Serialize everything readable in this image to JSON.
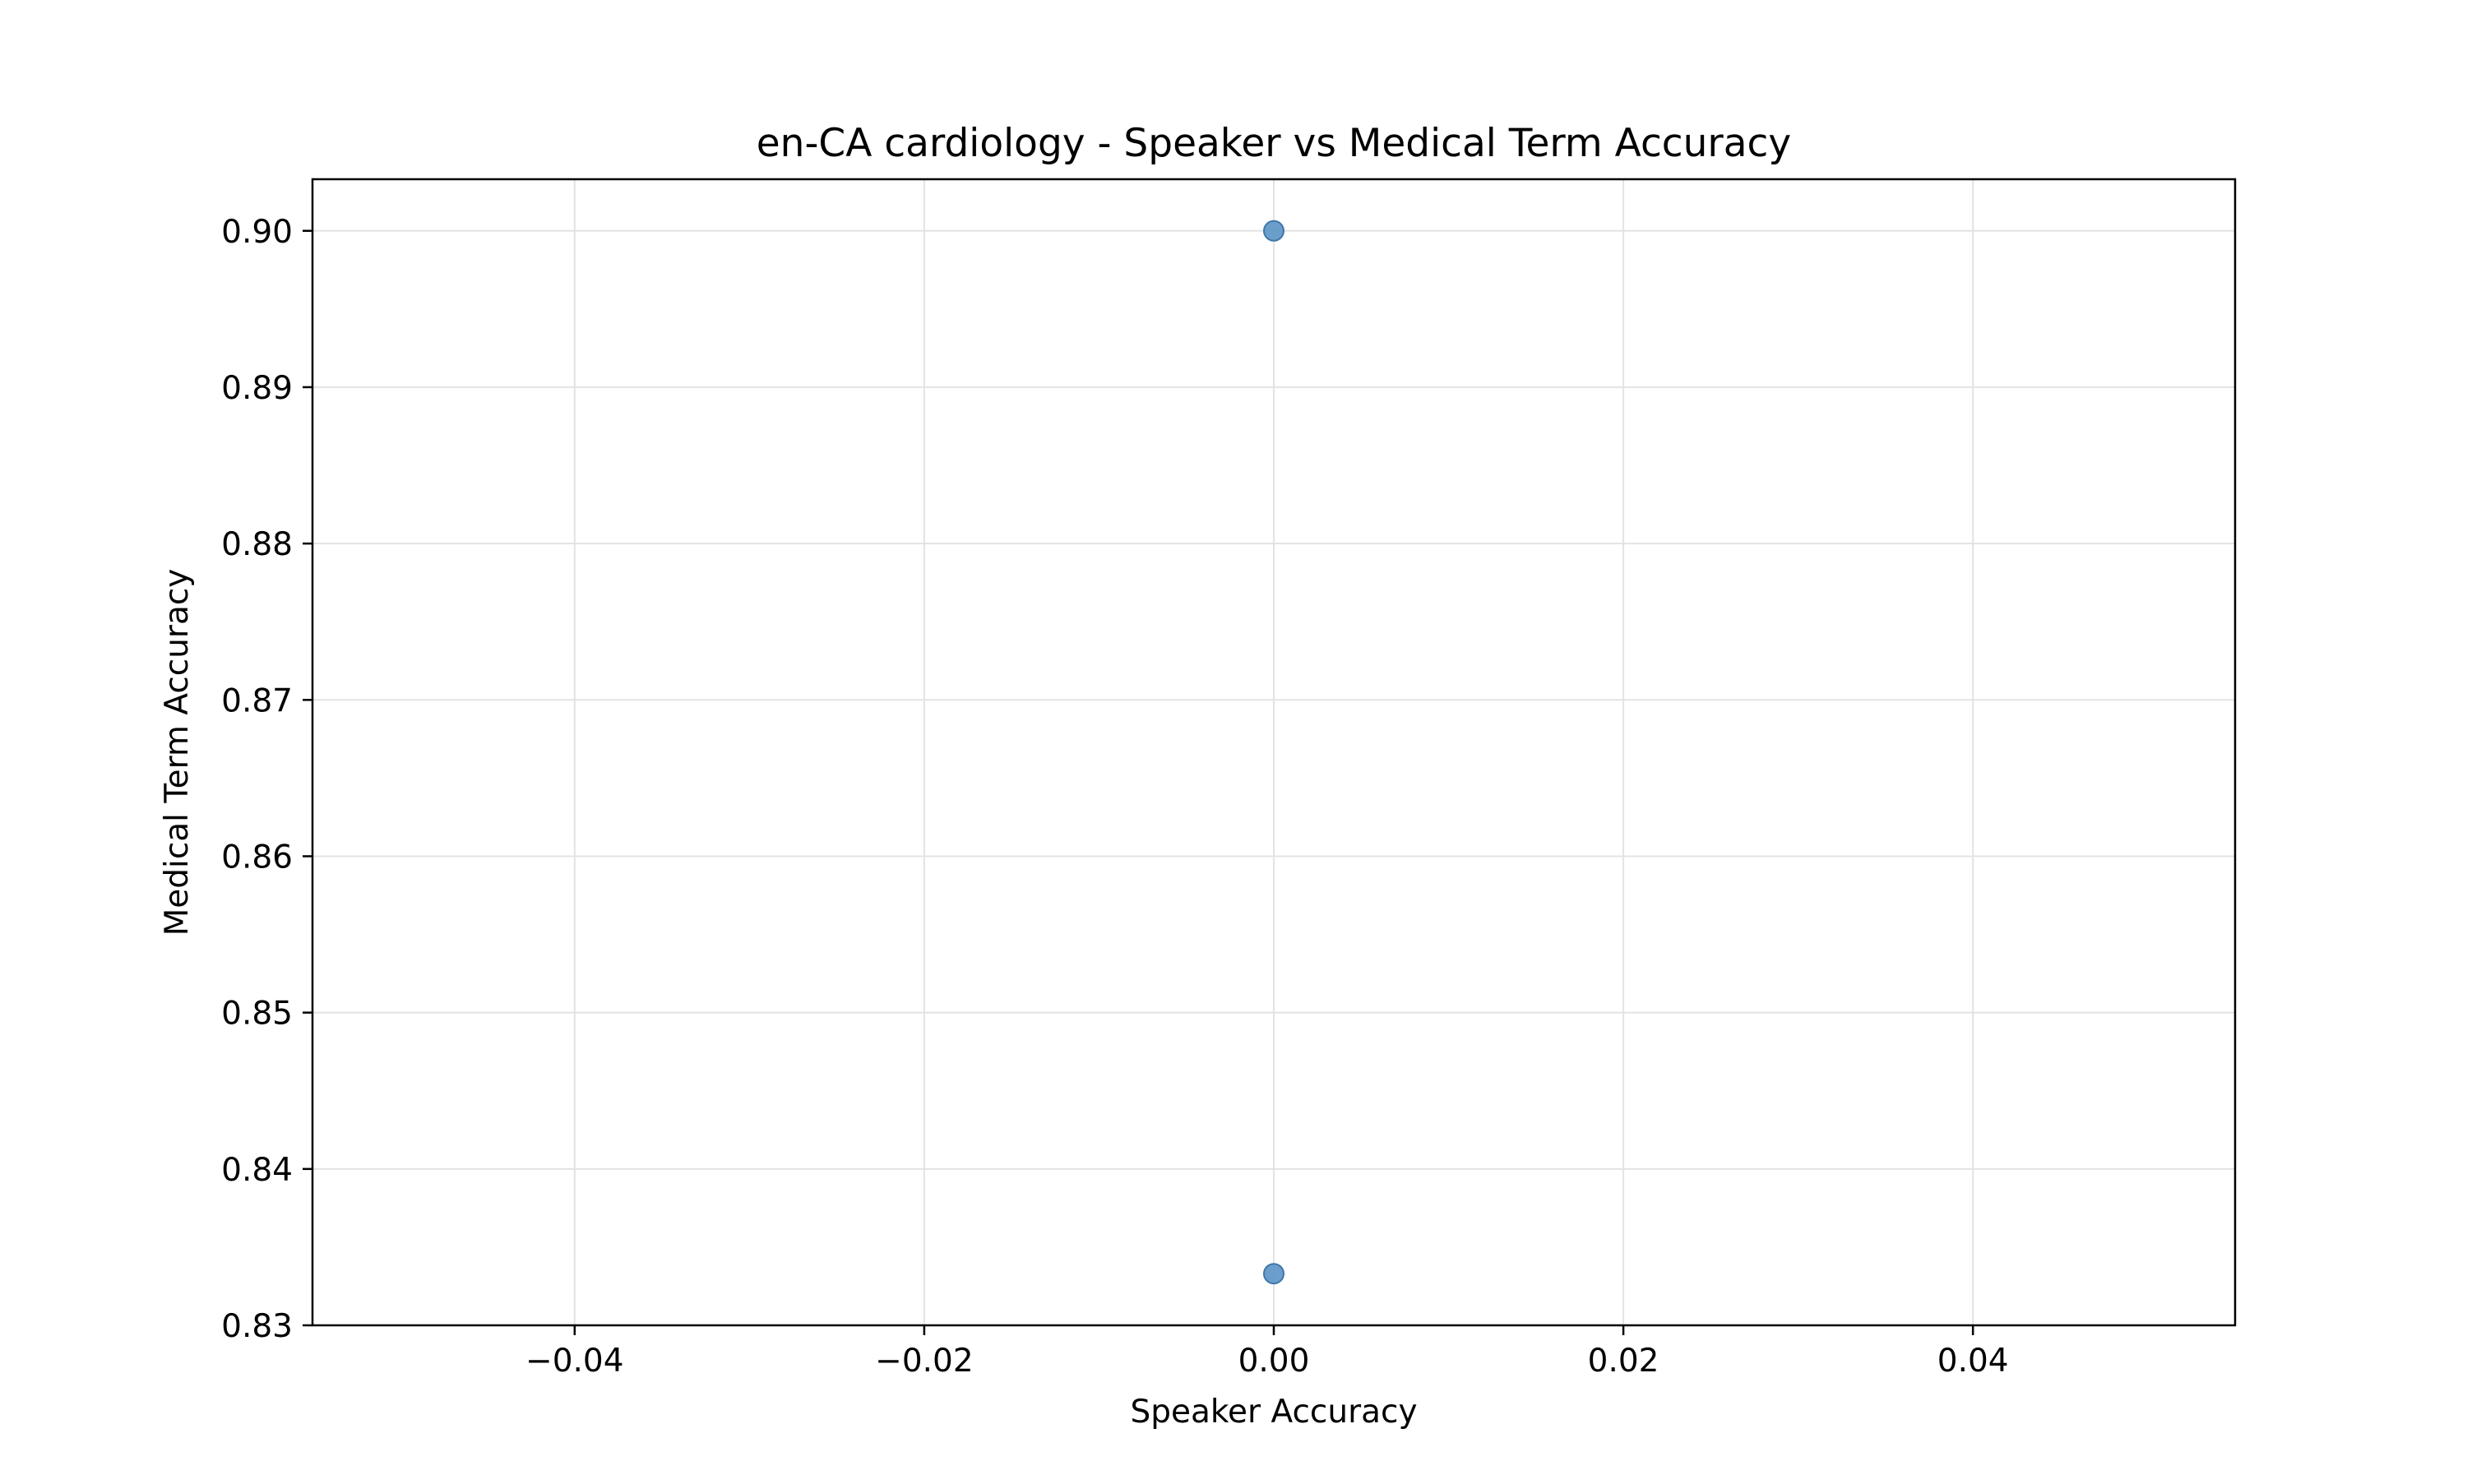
{
  "chart_data": {
    "type": "scatter",
    "title": "en-CA cardiology - Speaker vs Medical Term Accuracy",
    "xlabel": "Speaker Accuracy",
    "ylabel": "Medical Term Accuracy",
    "xlim": [
      -0.055,
      0.055
    ],
    "ylim": [
      0.83,
      0.9033
    ],
    "xticks": [
      -0.04,
      -0.02,
      0.0,
      0.02,
      0.04
    ],
    "xtick_labels": [
      "−0.04",
      "−0.02",
      "0.00",
      "0.02",
      "0.04"
    ],
    "yticks": [
      0.83,
      0.84,
      0.85,
      0.86,
      0.87,
      0.88,
      0.89,
      0.9
    ],
    "ytick_labels": [
      "0.83",
      "0.84",
      "0.85",
      "0.86",
      "0.87",
      "0.88",
      "0.89",
      "0.90"
    ],
    "grid": true,
    "points": [
      {
        "x": 0.0,
        "y": 0.9
      },
      {
        "x": 0.0,
        "y": 0.8333
      }
    ],
    "colors": {
      "point_fill": "#5b93c4",
      "point_edge": "#3f77aa",
      "grid": "#e3e3e3",
      "axes": "#000000"
    }
  }
}
